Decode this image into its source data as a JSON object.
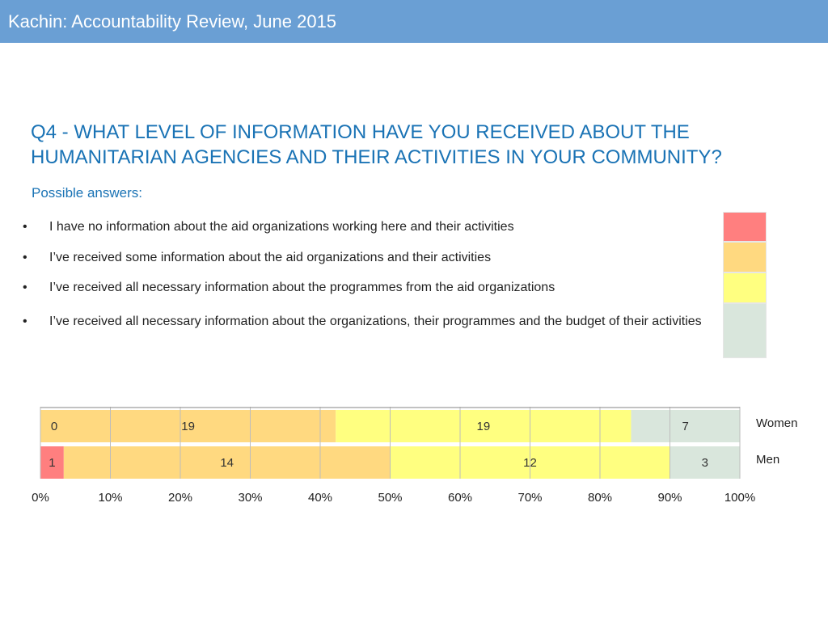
{
  "header": {
    "title": "Kachin: Accountability Review, June 2015"
  },
  "question": {
    "title": "Q4 - WHAT LEVEL OF INFORMATION HAVE YOU RECEIVED ABOUT THE HUMANITARIAN AGENCIES AND THEIR ACTIVITIES IN YOUR COMMUNITY?",
    "subtitle": "Possible answers:"
  },
  "answers": [
    {
      "bullet": "•",
      "text": "I have no information about the aid organizations working here and their activities",
      "color": "#ff7f7f"
    },
    {
      "bullet": "•",
      "text": "I’ve received some information about the aid organizations and their activities",
      "color": "#ffd980"
    },
    {
      "bullet": "•",
      "text": "I’ve received all necessary information about the programmes from the aid organizations",
      "color": "#ffff80"
    },
    {
      "bullet": "•",
      "text": "I’ve received all necessary information about the organizations, their programmes and the budget of their activities",
      "color": "#d9e6dc"
    }
  ],
  "chart_data": {
    "type": "bar",
    "orientation": "horizontal",
    "stacked": "percent",
    "categories": [
      "Women",
      "Men"
    ],
    "series": [
      {
        "values": [
          0,
          1
        ],
        "color": "#ff7f7f"
      },
      {
        "values": [
          19,
          14
        ],
        "color": "#ffd980"
      },
      {
        "values": [
          19,
          12
        ],
        "color": "#ffff80"
      },
      {
        "values": [
          7,
          3
        ],
        "color": "#d9e6dc"
      }
    ],
    "xlim": [
      0,
      100
    ],
    "xticks": [
      "0%",
      "10%",
      "20%",
      "30%",
      "40%",
      "50%",
      "60%",
      "70%",
      "80%",
      "90%",
      "100%"
    ],
    "grid": true,
    "legend": "none",
    "title": "",
    "xlabel": "",
    "ylabel": ""
  }
}
